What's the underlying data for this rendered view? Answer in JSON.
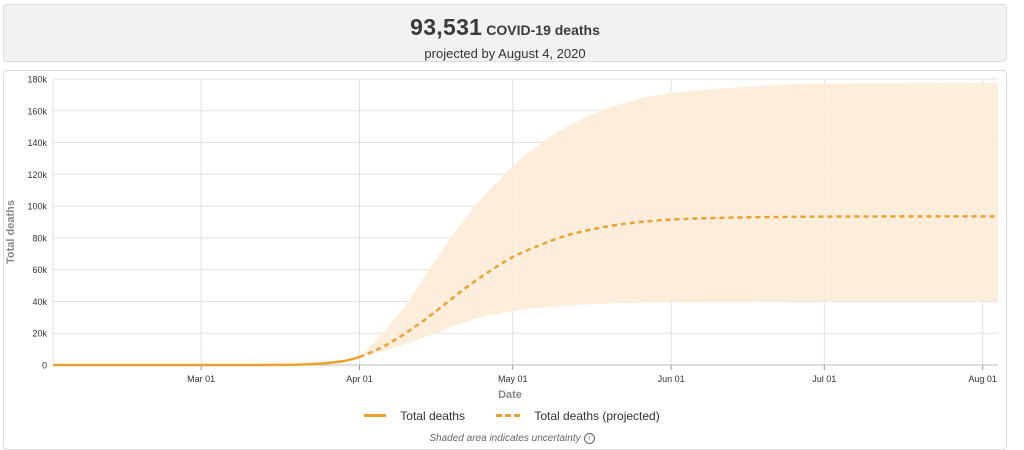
{
  "header": {
    "count": "93,531",
    "label": "COVID-19 deaths",
    "subtitle": "projected by August 4, 2020"
  },
  "legend": {
    "actual": "Total deaths",
    "projected": "Total deaths (projected)"
  },
  "footnote": {
    "text": "Shaded area indicates uncertainty",
    "icon": "info-icon"
  },
  "colors": {
    "line": "#efa22b",
    "band": "#fdecd8",
    "grid": "#e2e2e2"
  },
  "chart_data": {
    "type": "line",
    "xlabel": "Date",
    "ylabel": "Total deaths",
    "xlim": [
      "2020-02-01",
      "2020-08-04"
    ],
    "ylim": [
      0,
      180000
    ],
    "x_ticks": [
      {
        "date": "2020-03-01",
        "label": "Mar 01"
      },
      {
        "date": "2020-04-01",
        "label": "Apr 01"
      },
      {
        "date": "2020-05-01",
        "label": "May 01"
      },
      {
        "date": "2020-06-01",
        "label": "Jun 01"
      },
      {
        "date": "2020-07-01",
        "label": "Jul 01"
      },
      {
        "date": "2020-08-01",
        "label": "Aug 01"
      }
    ],
    "y_ticks": [
      {
        "value": 0,
        "label": "0"
      },
      {
        "value": 20000,
        "label": "20k"
      },
      {
        "value": 40000,
        "label": "40k"
      },
      {
        "value": 60000,
        "label": "60k"
      },
      {
        "value": 80000,
        "label": "80k"
      },
      {
        "value": 100000,
        "label": "100k"
      },
      {
        "value": 120000,
        "label": "120k"
      },
      {
        "value": 140000,
        "label": "140k"
      },
      {
        "value": 160000,
        "label": "160k"
      },
      {
        "value": 180000,
        "label": "180k"
      }
    ],
    "grid": true,
    "series": [
      {
        "name": "Total deaths",
        "style": "solid",
        "points": [
          [
            "2020-02-01",
            0
          ],
          [
            "2020-02-15",
            0
          ],
          [
            "2020-03-01",
            1
          ],
          [
            "2020-03-10",
            28
          ],
          [
            "2020-03-15",
            60
          ],
          [
            "2020-03-20",
            240
          ],
          [
            "2020-03-24",
            780
          ],
          [
            "2020-03-27",
            1700
          ],
          [
            "2020-03-29",
            2500
          ],
          [
            "2020-03-31",
            4100
          ],
          [
            "2020-04-01",
            5100
          ]
        ]
      },
      {
        "name": "Total deaths (projected)",
        "style": "dashed",
        "points": [
          [
            "2020-04-01",
            5100
          ],
          [
            "2020-04-04",
            9000
          ],
          [
            "2020-04-07",
            14000
          ],
          [
            "2020-04-10",
            20000
          ],
          [
            "2020-04-14",
            29000
          ],
          [
            "2020-04-18",
            39000
          ],
          [
            "2020-04-22",
            49000
          ],
          [
            "2020-04-26",
            58000
          ],
          [
            "2020-05-01",
            68000
          ],
          [
            "2020-05-06",
            75000
          ],
          [
            "2020-05-11",
            81000
          ],
          [
            "2020-05-16",
            85000
          ],
          [
            "2020-05-21",
            88000
          ],
          [
            "2020-05-26",
            90000
          ],
          [
            "2020-06-01",
            91500
          ],
          [
            "2020-06-10",
            92600
          ],
          [
            "2020-06-20",
            93100
          ],
          [
            "2020-07-01",
            93400
          ],
          [
            "2020-07-15",
            93500
          ],
          [
            "2020-08-04",
            93531
          ]
        ]
      }
    ],
    "uncertainty": {
      "upper": [
        [
          "2020-04-01",
          5100
        ],
        [
          "2020-04-05",
          18000
        ],
        [
          "2020-04-10",
          38000
        ],
        [
          "2020-04-15",
          62000
        ],
        [
          "2020-04-20",
          85000
        ],
        [
          "2020-04-25",
          105000
        ],
        [
          "2020-05-01",
          125000
        ],
        [
          "2020-05-08",
          143000
        ],
        [
          "2020-05-16",
          157000
        ],
        [
          "2020-05-24",
          166000
        ],
        [
          "2020-06-01",
          171000
        ],
        [
          "2020-06-15",
          175000
        ],
        [
          "2020-07-01",
          177000
        ],
        [
          "2020-08-04",
          177500
        ]
      ],
      "lower": [
        [
          "2020-04-01",
          5100
        ],
        [
          "2020-04-05",
          8000
        ],
        [
          "2020-04-10",
          13000
        ],
        [
          "2020-04-15",
          19000
        ],
        [
          "2020-04-20",
          25000
        ],
        [
          "2020-04-25",
          30000
        ],
        [
          "2020-05-01",
          34000
        ],
        [
          "2020-05-10",
          37000
        ],
        [
          "2020-05-20",
          38700
        ],
        [
          "2020-06-01",
          39500
        ],
        [
          "2020-07-01",
          40000
        ],
        [
          "2020-08-04",
          40000
        ]
      ]
    }
  }
}
